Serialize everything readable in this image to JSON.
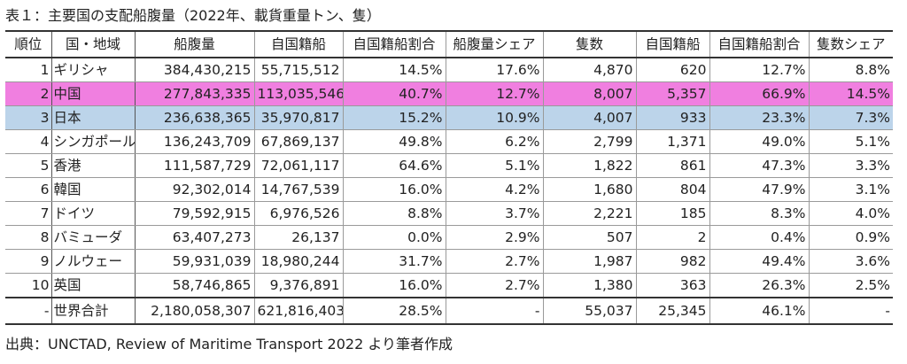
{
  "caption": "表１：主要国の支配船腹量（2022年、載貨重量トン、隻）",
  "source": "出典：UNCTAD, Review of Maritime Transport 2022 より筆者作成",
  "headers": [
    "順位",
    "国・地域",
    "船腹量",
    "自国籍船",
    "自国籍船割合",
    "船腹量シェア",
    "隻数",
    "自国籍船",
    "自国籍船割合",
    "隻数シェア"
  ],
  "rows": [
    {
      "rank": "1",
      "name": "ギリシャ",
      "dwt": "384,430,215",
      "nat": "55,715,512",
      "nat_pct": "14.5%",
      "share": "17.6%",
      "ships": "4,870",
      "nat_ships": "620",
      "nat_ships_pct": "12.7%",
      "ships_share": "8.8%"
    },
    {
      "rank": "2",
      "name": "中国",
      "dwt": "277,843,335",
      "nat": "113,035,546",
      "nat_pct": "40.7%",
      "share": "12.7%",
      "ships": "8,007",
      "nat_ships": "5,357",
      "nat_ships_pct": "66.9%",
      "ships_share": "14.5%"
    },
    {
      "rank": "3",
      "name": "日本",
      "dwt": "236,638,365",
      "nat": "35,970,817",
      "nat_pct": "15.2%",
      "share": "10.9%",
      "ships": "4,007",
      "nat_ships": "933",
      "nat_ships_pct": "23.3%",
      "ships_share": "7.3%"
    },
    {
      "rank": "4",
      "name": "シンガポール",
      "dwt": "136,243,709",
      "nat": "67,869,137",
      "nat_pct": "49.8%",
      "share": "6.2%",
      "ships": "2,799",
      "nat_ships": "1,371",
      "nat_ships_pct": "49.0%",
      "ships_share": "5.1%"
    },
    {
      "rank": "5",
      "name": "香港",
      "dwt": "111,587,729",
      "nat": "72,061,117",
      "nat_pct": "64.6%",
      "share": "5.1%",
      "ships": "1,822",
      "nat_ships": "861",
      "nat_ships_pct": "47.3%",
      "ships_share": "3.3%"
    },
    {
      "rank": "6",
      "name": "韓国",
      "dwt": "92,302,014",
      "nat": "14,767,539",
      "nat_pct": "16.0%",
      "share": "4.2%",
      "ships": "1,680",
      "nat_ships": "804",
      "nat_ships_pct": "47.9%",
      "ships_share": "3.1%"
    },
    {
      "rank": "7",
      "name": "ドイツ",
      "dwt": "79,592,915",
      "nat": "6,976,526",
      "nat_pct": "8.8%",
      "share": "3.7%",
      "ships": "2,221",
      "nat_ships": "185",
      "nat_ships_pct": "8.3%",
      "ships_share": "4.0%"
    },
    {
      "rank": "8",
      "name": "バミューダ",
      "dwt": "63,407,273",
      "nat": "26,137",
      "nat_pct": "0.0%",
      "share": "2.9%",
      "ships": "507",
      "nat_ships": "2",
      "nat_ships_pct": "0.4%",
      "ships_share": "0.9%"
    },
    {
      "rank": "9",
      "name": "ノルウェー",
      "dwt": "59,931,039",
      "nat": "18,980,244",
      "nat_pct": "31.7%",
      "share": "2.7%",
      "ships": "1,987",
      "nat_ships": "982",
      "nat_ships_pct": "49.4%",
      "ships_share": "3.6%"
    },
    {
      "rank": "10",
      "name": "英国",
      "dwt": "58,746,865",
      "nat": "9,376,891",
      "nat_pct": "16.0%",
      "share": "2.7%",
      "ships": "1,380",
      "nat_ships": "363",
      "nat_ships_pct": "26.3%",
      "ships_share": "2.5%"
    }
  ],
  "total": {
    "rank": "-",
    "name": "世界合計",
    "dwt": "2,180,058,307",
    "nat": "621,816,403",
    "nat_pct": "28.5%",
    "share": "-",
    "ships": "55,037",
    "nat_ships": "25,345",
    "nat_ships_pct": "46.1%",
    "ships_share": "-"
  },
  "highlight_colors": {
    "china_row": "#f07fe0",
    "japan_row": "#bcd4ea"
  }
}
